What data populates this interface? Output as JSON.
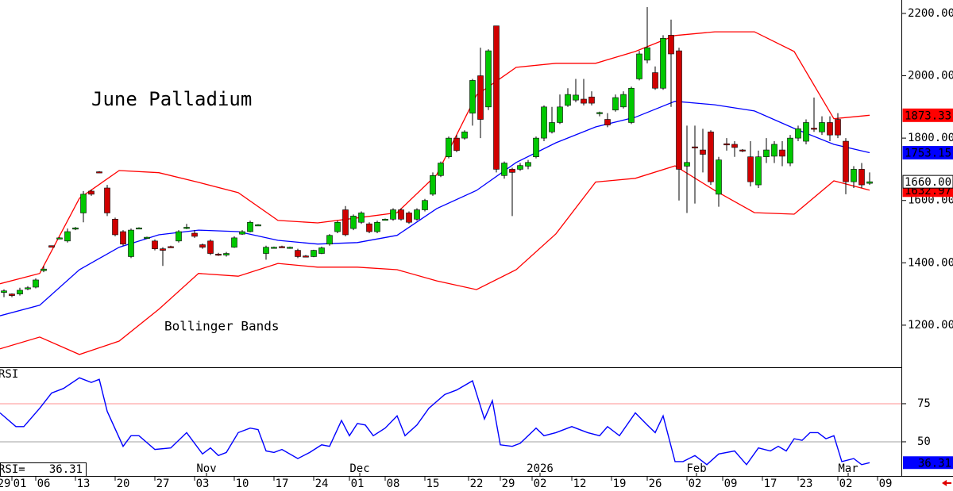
{
  "chart_data": [
    {
      "type": "candlestick",
      "title": "June Palladium",
      "annotation": "Bollinger Bands",
      "open": [
        1305,
        1300,
        1300,
        1318,
        1322,
        1375,
        1455,
        1480,
        1470,
        1508,
        1560,
        1630,
        1692,
        1640,
        1540,
        1500,
        1420,
        1512,
        1482,
        1470,
        1445,
        1452,
        1470,
        1512,
        1495,
        1458,
        1470,
        1428,
        1425,
        1450,
        1492,
        1500,
        1522,
        1430,
        1450,
        1452,
        1448,
        1440,
        1422,
        1420,
        1430,
        1460,
        1500,
        1570,
        1510,
        1530,
        1525,
        1500,
        1540,
        1540,
        1570,
        1560,
        1540,
        1570,
        1620,
        1680,
        1740,
        1800,
        1800,
        1880,
        2000,
        1900,
        2160,
        1680,
        1700,
        1700,
        1710,
        1740,
        1800,
        1820,
        1850,
        1905,
        1922,
        1925,
        1932,
        1880,
        1860,
        1890,
        1900,
        1850,
        1990,
        2050,
        2010,
        1960,
        2130,
        2080,
        1710,
        1772,
        1762,
        1820,
        1620,
        1782,
        1780,
        1762,
        1740,
        1650,
        1740,
        1742,
        1762,
        1720,
        1800,
        1790,
        1832,
        1820,
        1850,
        1860,
        1790,
        1660,
        1700,
        1655
      ],
      "high": [
        1315,
        1302,
        1320,
        1325,
        1350,
        1390,
        1455,
        1482,
        1510,
        1515,
        1630,
        1635,
        1694,
        1650,
        1545,
        1505,
        1510,
        1514,
        1484,
        1475,
        1450,
        1455,
        1505,
        1525,
        1505,
        1462,
        1475,
        1432,
        1435,
        1485,
        1505,
        1535,
        1524,
        1455,
        1452,
        1455,
        1452,
        1445,
        1425,
        1442,
        1452,
        1492,
        1535,
        1582,
        1555,
        1565,
        1530,
        1535,
        1542,
        1575,
        1575,
        1565,
        1575,
        1605,
        1690,
        1725,
        1805,
        1810,
        1825,
        1990,
        2090,
        2085,
        2160,
        1725,
        1705,
        1720,
        1730,
        1805,
        1905,
        1900,
        1940,
        1960,
        1990,
        1990,
        1950,
        1885,
        1880,
        1940,
        1950,
        1965,
        2080,
        2220,
        2030,
        2130,
        2180,
        2090,
        1840,
        1840,
        1830,
        1825,
        1740,
        1800,
        1790,
        1765,
        1790,
        1760,
        1800,
        1790,
        1790,
        1810,
        1840,
        1860,
        1930,
        1870,
        1870,
        1880,
        1800,
        1710,
        1720,
        1690
      ],
      "low": [
        1290,
        1290,
        1295,
        1312,
        1318,
        1370,
        1450,
        1478,
        1465,
        1505,
        1530,
        1615,
        1688,
        1550,
        1485,
        1455,
        1415,
        1510,
        1480,
        1440,
        1390,
        1448,
        1465,
        1508,
        1480,
        1445,
        1425,
        1422,
        1420,
        1448,
        1490,
        1498,
        1520,
        1410,
        1448,
        1448,
        1445,
        1415,
        1418,
        1418,
        1428,
        1455,
        1495,
        1485,
        1505,
        1525,
        1495,
        1495,
        1538,
        1535,
        1535,
        1525,
        1535,
        1565,
        1615,
        1675,
        1735,
        1755,
        1795,
        1840,
        1800,
        1890,
        1690,
        1670,
        1550,
        1695,
        1700,
        1735,
        1790,
        1815,
        1845,
        1900,
        1915,
        1905,
        1905,
        1870,
        1835,
        1885,
        1895,
        1845,
        1985,
        2040,
        1955,
        1955,
        1900,
        1600,
        1560,
        1590,
        1690,
        1650,
        1580,
        1760,
        1740,
        1755,
        1645,
        1640,
        1720,
        1720,
        1710,
        1710,
        1790,
        1780,
        1820,
        1810,
        1790,
        1800,
        1620,
        1640,
        1640,
        1650
      ],
      "close": [
        1310,
        1295,
        1312,
        1320,
        1345,
        1380,
        1450,
        1480,
        1500,
        1512,
        1620,
        1620,
        1690,
        1560,
        1490,
        1460,
        1505,
        1512,
        1482,
        1445,
        1440,
        1450,
        1500,
        1514,
        1485,
        1450,
        1430,
        1426,
        1430,
        1480,
        1500,
        1530,
        1522,
        1450,
        1450,
        1450,
        1450,
        1420,
        1420,
        1440,
        1448,
        1488,
        1530,
        1490,
        1550,
        1560,
        1500,
        1530,
        1540,
        1570,
        1540,
        1530,
        1570,
        1600,
        1680,
        1720,
        1800,
        1760,
        1820,
        1985,
        1860,
        2080,
        1700,
        1720,
        1690,
        1712,
        1722,
        1800,
        1900,
        1850,
        1900,
        1940,
        1938,
        1912,
        1912,
        1882,
        1842,
        1930,
        1940,
        1960,
        2070,
        2090,
        1960,
        2120,
        2070,
        1700,
        1722,
        1770,
        1748,
        1660,
        1730,
        1778,
        1770,
        1760,
        1660,
        1740,
        1762,
        1780,
        1742,
        1800,
        1830,
        1850,
        1830,
        1850,
        1810,
        1810,
        1660,
        1700,
        1650,
        1660
      ],
      "up_color": "#00c800",
      "down_color": "#d00000",
      "xlim": [
        -0.5,
        113
      ],
      "ylim": [
        1065,
        2243
      ],
      "yticks": [
        {
          "value": 1200,
          "label": "1200.00"
        },
        {
          "value": 1400,
          "label": "1400.00"
        },
        {
          "value": 1600,
          "label": "1600.00"
        },
        {
          "value": 1800,
          "label": "1800.00"
        },
        {
          "value": 2000,
          "label": "2000.00"
        },
        {
          "value": 2200,
          "label": "2200.00"
        }
      ],
      "bands": [
        {
          "color": "#ff0000",
          "x": [
            -0.5,
            4.5,
            9.5,
            14.5,
            19.5,
            24.5,
            29.5,
            34.5,
            39.5,
            44.5,
            49.5,
            54.5,
            59.5,
            64.5,
            69.5,
            74.5,
            79.5,
            84.5,
            89.5,
            94.5,
            99.5,
            104.5,
            109
          ],
          "values": [
            1333,
            1366,
            1607,
            1696,
            1689,
            1658,
            1625,
            1536,
            1528,
            1544,
            1561,
            1683,
            1938,
            2027,
            2040,
            2040,
            2078,
            2129,
            2141,
            2141,
            2078,
            1862,
            1873.33
          ]
        },
        {
          "color": "#0000ff",
          "x": [
            -0.5,
            4.5,
            9.5,
            14.5,
            19.5,
            24.5,
            29.5,
            34.5,
            39.5,
            44.5,
            49.5,
            54.5,
            59.5,
            64.5,
            69.5,
            74.5,
            79.5,
            84.5,
            89.5,
            94.5,
            99.5,
            104.5,
            109
          ],
          "values": [
            1230,
            1264,
            1378,
            1450,
            1490,
            1505,
            1500,
            1472,
            1460,
            1465,
            1488,
            1574,
            1632,
            1722,
            1785,
            1836,
            1867,
            1918,
            1907,
            1887,
            1831,
            1780,
            1753.15
          ]
        },
        {
          "color": "#ff0000",
          "x": [
            -0.5,
            4.5,
            9.5,
            14.5,
            19.5,
            24.5,
            29.5,
            34.5,
            39.5,
            44.5,
            49.5,
            54.5,
            59.5,
            64.5,
            69.5,
            74.5,
            79.5,
            84.5,
            89.5,
            94.5,
            99.5,
            104.5,
            109
          ],
          "values": [
            1124,
            1162,
            1106,
            1149,
            1251,
            1366,
            1357,
            1398,
            1386,
            1386,
            1378,
            1342,
            1314,
            1378,
            1493,
            1659,
            1671,
            1711,
            1632,
            1561,
            1556,
            1663,
            1632.97
          ]
        }
      ],
      "price_labels": [
        {
          "value": 1873.33,
          "label": "1873.33",
          "color": "#ff0000",
          "text_color": "#ffffff"
        },
        {
          "value": 1753.15,
          "label": "1753.15",
          "color": "#0000ff",
          "text_color": "#ffffff"
        },
        {
          "value": 1632.97,
          "label": "1632.97",
          "color": "#ff0000",
          "text_color": "#ffffff"
        },
        {
          "value": 1660,
          "label": "1660.00",
          "color": "#ffffff",
          "text_color": "#000000"
        }
      ],
      "xticks": [
        {
          "value": 0,
          "label": "29"
        },
        {
          "value": 2,
          "label": "01"
        },
        {
          "value": 5,
          "label": "06"
        },
        {
          "value": 10,
          "label": "13"
        },
        {
          "value": 15,
          "label": "20"
        },
        {
          "value": 20,
          "label": "27"
        },
        {
          "value": 25,
          "label": "03"
        },
        {
          "value": 30,
          "label": "10"
        },
        {
          "value": 35,
          "label": "17"
        },
        {
          "value": 40,
          "label": "24"
        },
        {
          "value": 44.5,
          "label": "01"
        },
        {
          "value": 49,
          "label": "08"
        },
        {
          "value": 54,
          "label": "15"
        },
        {
          "value": 59.5,
          "label": "22"
        },
        {
          "value": 63.5,
          "label": "29"
        },
        {
          "value": 67.5,
          "label": "02"
        },
        {
          "value": 72.5,
          "label": "12"
        },
        {
          "value": 77.5,
          "label": "19"
        },
        {
          "value": 82,
          "label": "26"
        },
        {
          "value": 87,
          "label": "02"
        },
        {
          "value": 91.5,
          "label": "09"
        },
        {
          "value": 96.5,
          "label": "17"
        },
        {
          "value": 101,
          "label": "23"
        },
        {
          "value": 106,
          "label": "02"
        },
        {
          "value": 111,
          "label": "09"
        }
      ],
      "month_ticks": [
        {
          "value": 25.5,
          "label": "Nov"
        },
        {
          "value": 44.8,
          "label": "Dec"
        },
        {
          "value": 67.5,
          "label": "2026"
        },
        {
          "value": 87.2,
          "label": "Feb"
        },
        {
          "value": 106.3,
          "label": "Mar"
        }
      ]
    },
    {
      "type": "line",
      "title": "RSI",
      "readout_label": "RSI=",
      "color": "#0000ff",
      "x": [
        -0.5,
        1.5,
        2.5,
        4.5,
        6,
        7.5,
        9.5,
        11,
        12,
        13,
        15,
        16,
        17,
        19,
        21,
        23,
        25,
        26,
        27,
        28,
        29.5,
        31,
        32,
        33,
        34,
        35,
        37,
        38.5,
        40,
        41,
        42.5,
        43.5,
        44.5,
        45.5,
        46.5,
        48,
        49.5,
        50.5,
        52,
        53.5,
        55.5,
        57,
        59,
        60.5,
        61.5,
        62.5,
        64,
        65,
        67,
        68,
        69.5,
        71.5,
        73.5,
        75,
        76,
        77.5,
        79.5,
        81,
        82,
        83,
        84.5,
        85.5,
        87,
        88.5,
        90,
        92,
        93.5,
        95,
        96.5,
        97.5,
        98.5,
        99.5,
        100.5,
        101.5,
        102.5,
        103.5,
        104.5,
        105.5,
        107,
        108,
        109
      ],
      "values": [
        69,
        60,
        60,
        72,
        82,
        85,
        92,
        89,
        91,
        70,
        47,
        54,
        54,
        45,
        46,
        56,
        42,
        46,
        41,
        43,
        56,
        59,
        58,
        44,
        43,
        45,
        39,
        43,
        48,
        47,
        64,
        54,
        62,
        61,
        54,
        59,
        67,
        54,
        61,
        72,
        81,
        84,
        90,
        65,
        77,
        48,
        47,
        49,
        59,
        54,
        56,
        60,
        56,
        54,
        60,
        54,
        69,
        61,
        56,
        67,
        37,
        37,
        41,
        35,
        42,
        44,
        35,
        46,
        44,
        47,
        44,
        52,
        51,
        56,
        56,
        52,
        54,
        37,
        39,
        35,
        36.31
      ],
      "xlim": [
        -0.5,
        113
      ],
      "ylim": [
        27.6,
        98.4
      ],
      "yticks": [
        50,
        75
      ],
      "tick_line_colors": [
        "#a0a0a0",
        "#ff9090"
      ]
    }
  ]
}
